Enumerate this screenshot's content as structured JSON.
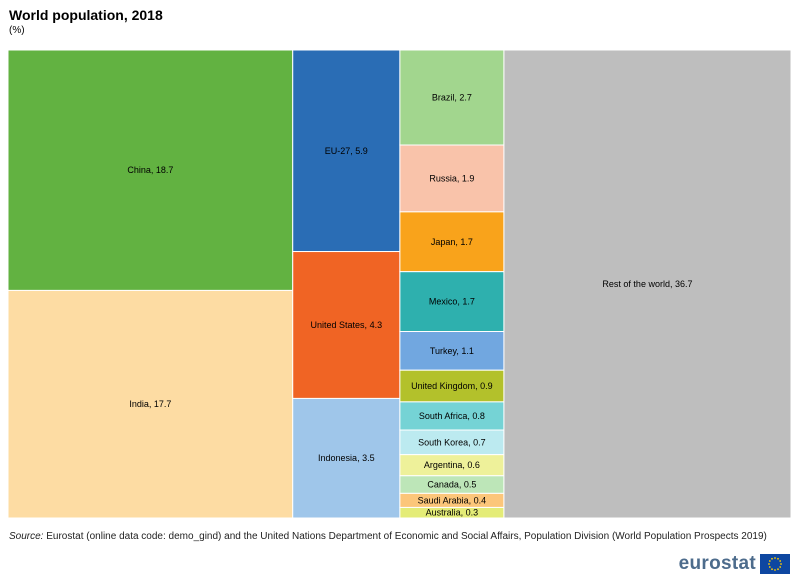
{
  "title": "World population, 2018",
  "subtitle": "(%)",
  "source_label": "Source:",
  "source_text": "Eurostat (online data code: demo_gind) and the United Nations Department of Economic and Social Affairs, Population Division (World Population Prospects 2019)",
  "logo_text": "eurostat",
  "colors": {
    "logo_text": "#4d6c8c",
    "eu_flag_blue": "#0e47a1",
    "eu_flag_star": "#ffcc00"
  },
  "chart_data": {
    "type": "treemap",
    "unit": "%",
    "items": [
      {
        "name": "China",
        "label": "China, 18.7",
        "value": 18.7,
        "color": "#62b241"
      },
      {
        "name": "India",
        "label": "India, 17.7",
        "value": 17.7,
        "color": "#fddca3"
      },
      {
        "name": "EU-27",
        "label": "EU-27, 5.9",
        "value": 5.9,
        "color": "#2a6db5"
      },
      {
        "name": "United States",
        "label": "United States, 4.3",
        "value": 4.3,
        "color": "#f06424"
      },
      {
        "name": "Indonesia",
        "label": "Indonesia, 3.5",
        "value": 3.5,
        "color": "#9fc6ea"
      },
      {
        "name": "Brazil",
        "label": "Brazil, 2.7",
        "value": 2.7,
        "color": "#a2d68e"
      },
      {
        "name": "Russia",
        "label": "Russia, 1.9",
        "value": 1.9,
        "color": "#f9c3aa"
      },
      {
        "name": "Japan",
        "label": "Japan, 1.7",
        "value": 1.7,
        "color": "#f9a31b"
      },
      {
        "name": "Mexico",
        "label": "Mexico, 1.7",
        "value": 1.7,
        "color": "#2eb0ae"
      },
      {
        "name": "Turkey",
        "label": "Turkey, 1.1",
        "value": 1.1,
        "color": "#71a7e0"
      },
      {
        "name": "United Kingdom",
        "label": "United Kingdom, 0.9",
        "value": 0.9,
        "color": "#b3c12b"
      },
      {
        "name": "South Africa",
        "label": "South Africa, 0.8",
        "value": 0.8,
        "color": "#75d3d5"
      },
      {
        "name": "South Korea",
        "label": "South Korea, 0.7",
        "value": 0.7,
        "color": "#bceaf0"
      },
      {
        "name": "Argentina",
        "label": "Argentina, 0.6",
        "value": 0.6,
        "color": "#eef19a"
      },
      {
        "name": "Canada",
        "label": "Canada, 0.5",
        "value": 0.5,
        "color": "#bde6b8"
      },
      {
        "name": "Saudi Arabia",
        "label": "Saudi Arabia, 0.4",
        "value": 0.4,
        "color": "#fcc67a"
      },
      {
        "name": "Australia",
        "label": "Australia, 0.3",
        "value": 0.3,
        "color": "#e4ec77"
      },
      {
        "name": "Rest of the world",
        "label": "Rest of the world, 36.7",
        "value": 36.7,
        "color": "#bebebe"
      }
    ]
  }
}
